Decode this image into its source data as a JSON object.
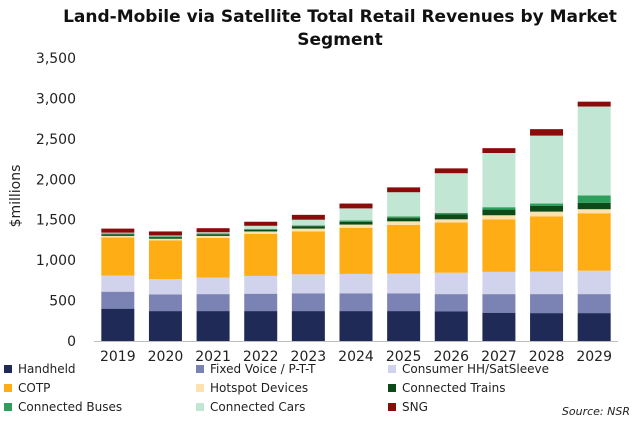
{
  "chart_data": {
    "type": "bar",
    "stacked": true,
    "title": "Land-Mobile via Satellite Total Retail Revenues by Market Segment",
    "ylabel": "$millions",
    "xlabel": "",
    "ylim": [
      0,
      3500
    ],
    "yticks": [
      0,
      500,
      1000,
      1500,
      2000,
      2500,
      3000,
      3500
    ],
    "ytick_labels": [
      "0",
      "500",
      "1,000",
      "1,500",
      "2,000",
      "2,500",
      "3,000",
      "3,500"
    ],
    "grid": false,
    "legend_position": "bottom",
    "categories": [
      "2019",
      "2020",
      "2021",
      "2022",
      "2023",
      "2024",
      "2025",
      "2026",
      "2027",
      "2028",
      "2029"
    ],
    "series": [
      {
        "name": "Handheld",
        "color": "#1f2a56",
        "values": [
          400,
          370,
          370,
          370,
          370,
          370,
          370,
          365,
          350,
          345,
          345
        ]
      },
      {
        "name": "Fixed Voice / P-T-T",
        "color": "#7a83b3",
        "values": [
          210,
          205,
          210,
          215,
          220,
          220,
          220,
          215,
          230,
          235,
          235
        ]
      },
      {
        "name": "Consumer HH/SatSleeve",
        "color": "#d1d3ec",
        "values": [
          200,
          190,
          205,
          220,
          235,
          240,
          245,
          265,
          275,
          280,
          290
        ]
      },
      {
        "name": "COTP",
        "color": "#ffad14",
        "values": [
          470,
          480,
          490,
          520,
          530,
          570,
          600,
          620,
          650,
          680,
          710
        ]
      },
      {
        "name": "Hotspot Devices",
        "color": "#fde2b0",
        "values": [
          20,
          20,
          25,
          30,
          35,
          40,
          45,
          40,
          50,
          60,
          50
        ]
      },
      {
        "name": "Connected Trains",
        "color": "#0c4a1a",
        "values": [
          20,
          20,
          20,
          20,
          30,
          35,
          40,
          60,
          70,
          70,
          80
        ]
      },
      {
        "name": "Connected Buses",
        "color": "#2d9e5c",
        "values": [
          10,
          10,
          10,
          10,
          10,
          15,
          20,
          20,
          30,
          30,
          90
        ]
      },
      {
        "name": "Connected Cars",
        "color": "#c1e6d3",
        "values": [
          10,
          10,
          15,
          40,
          70,
          150,
          300,
          490,
          670,
          840,
          1100
        ]
      },
      {
        "name": "SNG",
        "color": "#8b0a0a",
        "values": [
          50,
          50,
          50,
          50,
          60,
          60,
          60,
          60,
          60,
          80,
          60
        ]
      }
    ],
    "source": "Source: NSR"
  }
}
